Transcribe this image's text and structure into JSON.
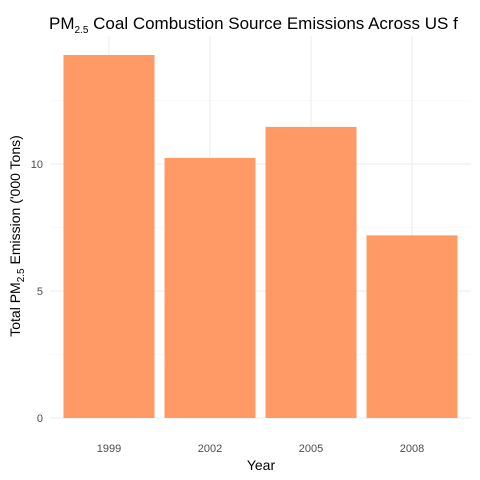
{
  "chart_data": {
    "type": "bar",
    "title": {
      "main": "PM",
      "subscript": "2.5",
      "rest": " Coal Combustion Source Emissions Across US f"
    },
    "xlabel": "Year",
    "ylabel": {
      "before": "Total PM",
      "subscript": "2.5",
      "after": " Emission ('000 Tons)"
    },
    "categories": [
      "1999",
      "2002",
      "2005",
      "2008"
    ],
    "values": [
      14.29,
      10.24,
      11.46,
      7.19
    ],
    "yticks": [
      0,
      5,
      10
    ],
    "ylim": [
      0,
      15.0
    ],
    "bar_color": "#FF9966",
    "grid": true,
    "legend": "none"
  }
}
